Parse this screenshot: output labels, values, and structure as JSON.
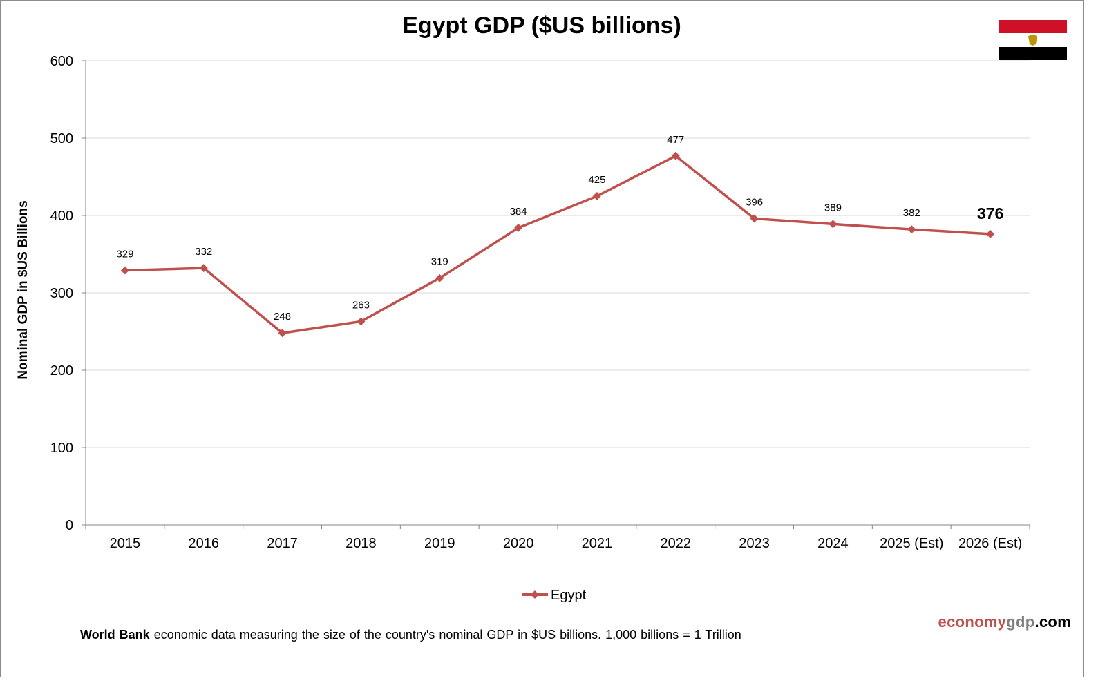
{
  "chart_data": {
    "type": "line",
    "title": "Egypt GDP ($US billions)",
    "xlabel": "",
    "ylabel": "Nominal GDP in $US Billions",
    "ylim": [
      0,
      600
    ],
    "yticks": [
      0,
      100,
      200,
      300,
      400,
      500,
      600
    ],
    "grid": true,
    "legend_position": "bottom",
    "categories": [
      "2015",
      "2016",
      "2017",
      "2018",
      "2019",
      "2020",
      "2021",
      "2022",
      "2023",
      "2024",
      "2025 (Est)",
      "2026 (Est)"
    ],
    "series": [
      {
        "name": "Egypt",
        "color": "#c0504d",
        "values": [
          329,
          332,
          248,
          263,
          319,
          384,
          425,
          477,
          396,
          389,
          382,
          376
        ]
      }
    ],
    "highlighted_label": "376"
  },
  "footnote": {
    "source": "World Bank",
    "text": "economic data  measuring  the size of the country's nominal  GDP in $US billions.  1,000 billions  =  1 Trillion"
  },
  "brand": {
    "part1": "economy",
    "part2": "gdp",
    "part3": ".com"
  },
  "flag": {
    "colors": [
      "#ce1126",
      "#ffffff",
      "#000000"
    ],
    "emblem_color": "#c09300"
  }
}
